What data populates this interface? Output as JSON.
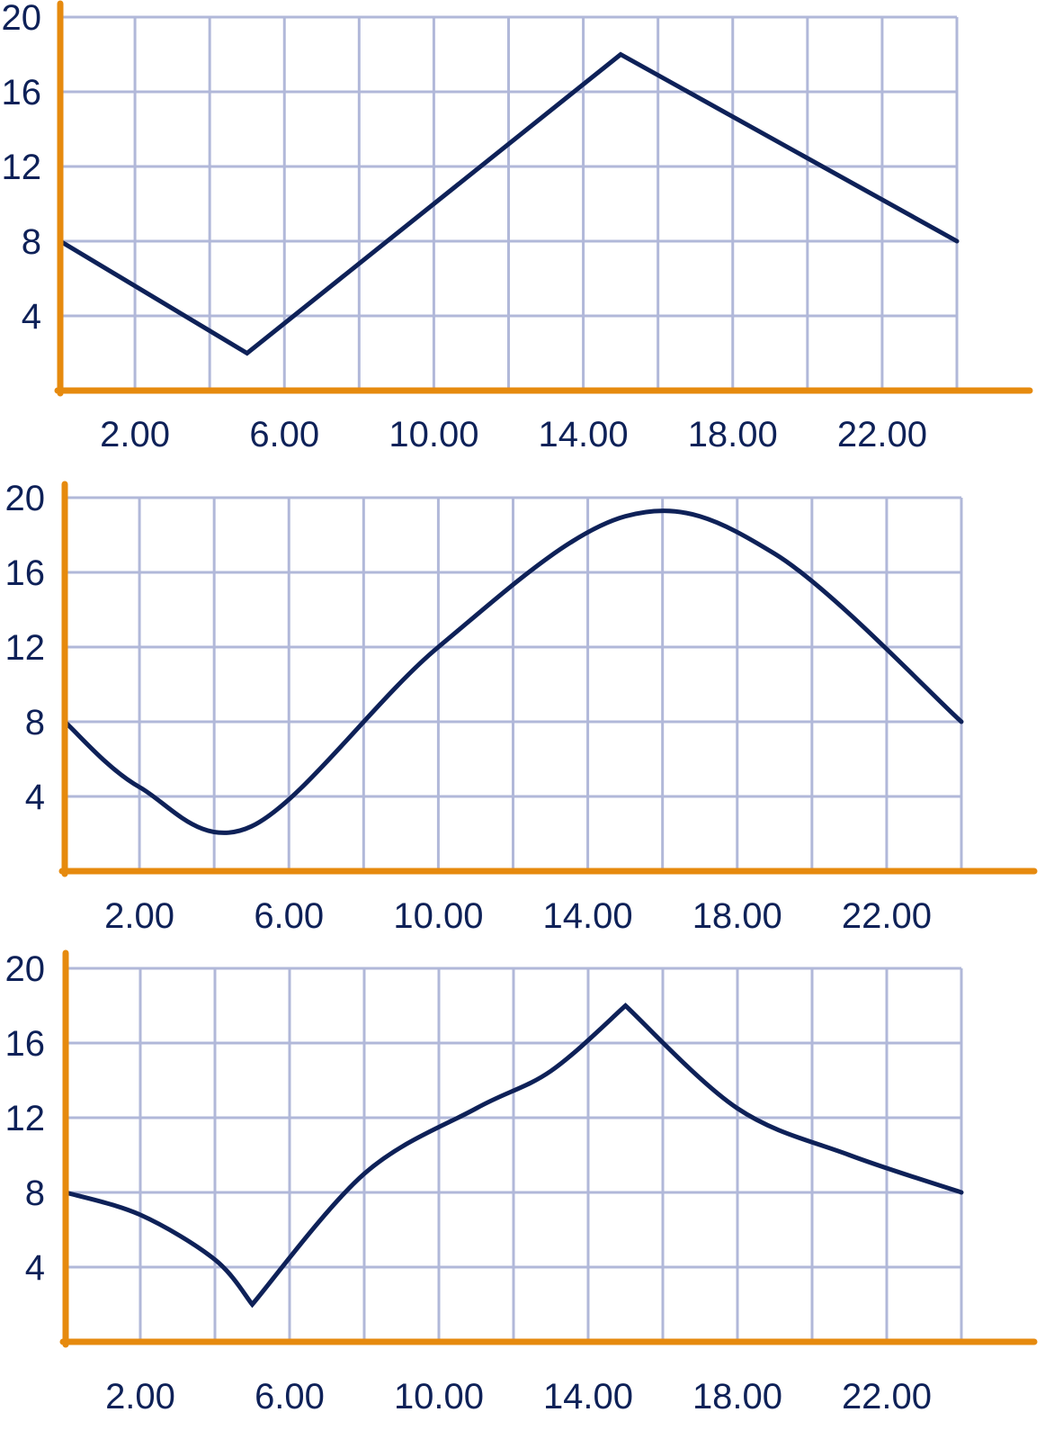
{
  "chart_data": [
    {
      "type": "line",
      "title": "",
      "xlabel": "",
      "ylabel": "",
      "xlim": [
        0,
        24
      ],
      "ylim": [
        0,
        20
      ],
      "grid": true,
      "x_ticks": [
        "2.00",
        "6.00",
        "10.00",
        "14.00",
        "18.00",
        "22.00"
      ],
      "y_ticks": [
        "4",
        "8",
        "12",
        "16",
        "20"
      ],
      "interpolation": "linear",
      "series": [
        {
          "x": [
            0,
            5,
            15,
            24
          ],
          "y": [
            8,
            2,
            18,
            8
          ]
        }
      ]
    },
    {
      "type": "line",
      "title": "",
      "xlabel": "",
      "ylabel": "",
      "xlim": [
        0,
        24
      ],
      "ylim": [
        0,
        20
      ],
      "grid": true,
      "x_ticks": [
        "2.00",
        "6.00",
        "10.00",
        "14.00",
        "18.00",
        "22.00"
      ],
      "y_ticks": [
        "4",
        "8",
        "12",
        "16",
        "20"
      ],
      "interpolation": "smooth",
      "series": [
        {
          "x": [
            0,
            2,
            5,
            10,
            15,
            19,
            24
          ],
          "y": [
            8,
            4.5,
            2.4,
            12,
            19,
            17,
            8
          ]
        }
      ]
    },
    {
      "type": "line",
      "title": "",
      "xlabel": "",
      "ylabel": "",
      "xlim": [
        0,
        24
      ],
      "ylim": [
        0,
        20
      ],
      "grid": true,
      "x_ticks": [
        "2.00",
        "6.00",
        "10.00",
        "14.00",
        "18.00",
        "22.00"
      ],
      "y_ticks": [
        "4",
        "8",
        "12",
        "16",
        "20"
      ],
      "interpolation": "curved-segments",
      "series": [
        {
          "x": [
            0,
            2,
            4,
            5,
            8,
            11,
            13,
            15,
            18,
            21,
            24
          ],
          "y": [
            8,
            6.8,
            4.4,
            2,
            9,
            12.5,
            14.5,
            18,
            12.5,
            10,
            8
          ]
        }
      ]
    }
  ],
  "colors": {
    "axis": "#e68a0e",
    "grid": "#b1b8d9",
    "line": "#0e2158",
    "text": "#0e2158"
  }
}
